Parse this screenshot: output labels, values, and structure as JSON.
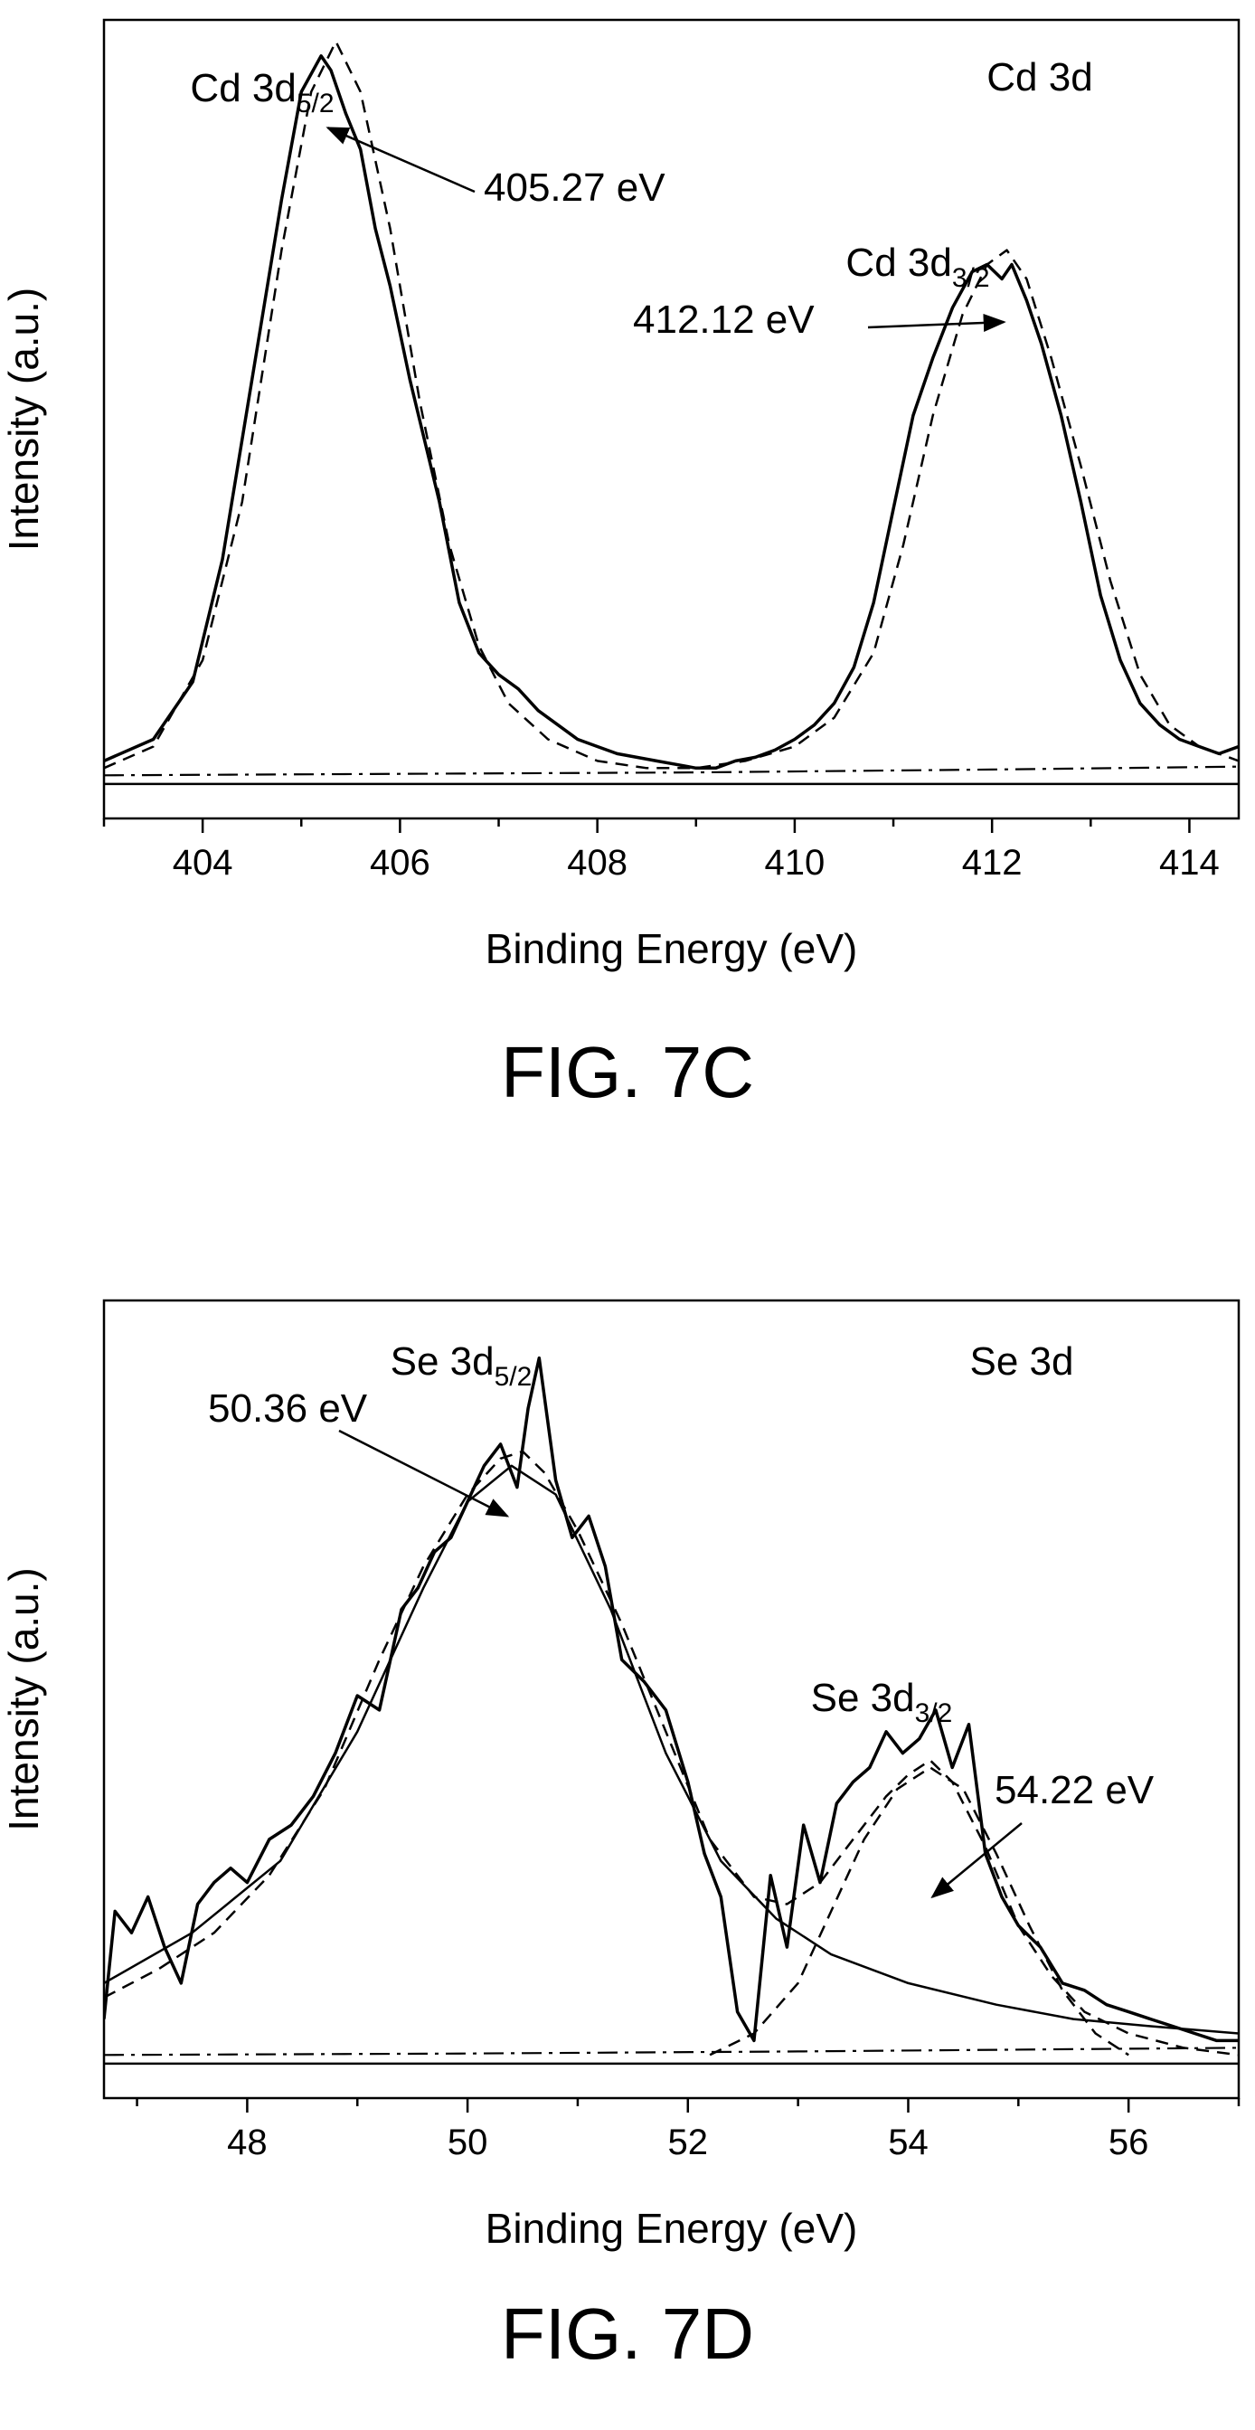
{
  "figures": [
    {
      "caption": "FIG. 7C"
    },
    {
      "caption": "FIG. 7D"
    }
  ],
  "chart_data": [
    {
      "type": "line",
      "panel_label": "Cd 3d",
      "xlabel": "Binding Energy (eV)",
      "ylabel": "Intensity (a.u.)",
      "xlim": [
        403.0,
        414.5
      ],
      "ylim": [
        -0.06,
        1.05
      ],
      "xticks": [
        404,
        406,
        408,
        410,
        412,
        414
      ],
      "yticks_shown": false,
      "grid": false,
      "series": [
        {
          "style": "solid",
          "x": [
            403.0,
            403.5,
            403.9,
            404.2,
            404.5,
            404.8,
            405.0,
            405.2,
            405.3,
            405.45,
            405.6,
            405.75,
            405.9,
            406.1,
            406.4,
            406.6,
            406.8,
            407.0,
            407.2,
            407.4,
            407.6,
            407.8,
            408.0,
            408.2,
            408.4,
            408.6,
            408.8,
            409.0,
            409.2,
            409.4,
            409.6,
            409.8,
            410.0,
            410.2,
            410.4,
            410.6,
            410.8,
            411.0,
            411.2,
            411.4,
            411.6,
            411.8,
            411.95,
            412.1,
            412.2,
            412.35,
            412.5,
            412.7,
            412.9,
            413.1,
            413.3,
            413.5,
            413.7,
            413.9,
            414.1,
            414.3,
            414.5
          ],
          "y": [
            0.02,
            0.05,
            0.13,
            0.3,
            0.55,
            0.8,
            0.95,
            1.0,
            0.98,
            0.92,
            0.87,
            0.76,
            0.68,
            0.55,
            0.38,
            0.24,
            0.17,
            0.14,
            0.12,
            0.09,
            0.07,
            0.05,
            0.04,
            0.03,
            0.025,
            0.02,
            0.015,
            0.01,
            0.01,
            0.02,
            0.025,
            0.035,
            0.05,
            0.07,
            0.1,
            0.15,
            0.24,
            0.37,
            0.5,
            0.58,
            0.65,
            0.7,
            0.71,
            0.69,
            0.71,
            0.66,
            0.6,
            0.5,
            0.38,
            0.25,
            0.16,
            0.1,
            0.07,
            0.05,
            0.04,
            0.03,
            0.04
          ]
        },
        {
          "style": "dashed",
          "x": [
            403.0,
            403.5,
            404.0,
            404.4,
            404.8,
            405.1,
            405.35,
            405.6,
            405.9,
            406.2,
            406.5,
            406.8,
            407.1,
            407.5,
            408.0,
            408.5,
            409.0,
            409.5,
            410.0,
            410.4,
            410.8,
            411.1,
            411.4,
            411.7,
            411.95,
            412.15,
            412.35,
            412.6,
            412.9,
            413.2,
            413.5,
            413.8,
            414.1,
            414.5
          ],
          "y": [
            0.01,
            0.04,
            0.16,
            0.38,
            0.73,
            0.95,
            1.02,
            0.95,
            0.76,
            0.52,
            0.32,
            0.18,
            0.1,
            0.05,
            0.02,
            0.01,
            0.01,
            0.02,
            0.04,
            0.08,
            0.17,
            0.32,
            0.5,
            0.64,
            0.71,
            0.73,
            0.69,
            0.58,
            0.43,
            0.27,
            0.14,
            0.07,
            0.04,
            0.02
          ]
        },
        {
          "style": "dashdot",
          "x": [
            403.0,
            406.0,
            409.0,
            412.0,
            414.5
          ],
          "y": [
            0.0,
            0.002,
            0.004,
            0.008,
            0.012
          ]
        }
      ],
      "annotations": [
        {
          "label_main": "Cd 3d",
          "label_sub": "5/2"
        },
        {
          "label_main": "Cd 3d",
          "label_sub": "3/2"
        },
        {
          "text": "405.27 eV",
          "arrow_x": 405.27,
          "arrow_y": 0.9
        },
        {
          "text": "412.12 eV",
          "arrow_x": 412.12,
          "arrow_y": 0.63
        }
      ]
    },
    {
      "type": "line",
      "panel_label": "Se 3d",
      "xlabel": "Binding Energy (eV)",
      "ylabel": "Intensity (a.u.)",
      "xlim": [
        46.7,
        57.0
      ],
      "ylim": [
        -0.06,
        1.05
      ],
      "xticks": [
        48,
        50,
        52,
        54,
        56
      ],
      "yticks_shown": false,
      "grid": false,
      "series": [
        {
          "style": "solid",
          "x": [
            46.7,
            46.8,
            46.95,
            47.1,
            47.25,
            47.4,
            47.55,
            47.7,
            47.85,
            48.0,
            48.2,
            48.4,
            48.6,
            48.8,
            49.0,
            49.2,
            49.4,
            49.55,
            49.7,
            49.85,
            50.0,
            50.15,
            50.3,
            50.45,
            50.55,
            50.65,
            50.8,
            50.95,
            51.1,
            51.25,
            51.4,
            51.6,
            51.8,
            52.0,
            52.15,
            52.3,
            52.45,
            52.6,
            52.75,
            52.9,
            53.05,
            53.2,
            53.35,
            53.5,
            53.65,
            53.8,
            53.95,
            54.1,
            54.25,
            54.4,
            54.55,
            54.7,
            54.85,
            55.0,
            55.2,
            55.4,
            55.6,
            55.8,
            56.0,
            56.2,
            56.4,
            56.6,
            56.8,
            57.0
          ],
          "y": [
            0.05,
            0.2,
            0.17,
            0.22,
            0.15,
            0.1,
            0.21,
            0.24,
            0.26,
            0.24,
            0.3,
            0.32,
            0.36,
            0.42,
            0.5,
            0.48,
            0.62,
            0.65,
            0.7,
            0.72,
            0.77,
            0.82,
            0.85,
            0.79,
            0.9,
            0.97,
            0.8,
            0.72,
            0.75,
            0.68,
            0.55,
            0.52,
            0.48,
            0.38,
            0.28,
            0.22,
            0.06,
            0.02,
            0.25,
            0.15,
            0.32,
            0.24,
            0.35,
            0.38,
            0.4,
            0.45,
            0.42,
            0.44,
            0.48,
            0.4,
            0.46,
            0.28,
            0.22,
            0.18,
            0.15,
            0.1,
            0.09,
            0.07,
            0.06,
            0.05,
            0.04,
            0.03,
            0.02,
            0.02
          ]
        },
        {
          "style": "dashed",
          "x": [
            46.7,
            47.2,
            47.7,
            48.2,
            48.7,
            49.2,
            49.6,
            50.0,
            50.3,
            50.5,
            50.7,
            51.0,
            51.4,
            51.8,
            52.2,
            52.6,
            52.9,
            53.2,
            53.5,
            53.8,
            54.0,
            54.2,
            54.4,
            54.7,
            55.0,
            55.3,
            55.6,
            56.0,
            56.5,
            57.0
          ],
          "y": [
            0.08,
            0.12,
            0.17,
            0.25,
            0.37,
            0.55,
            0.68,
            0.78,
            0.83,
            0.84,
            0.81,
            0.73,
            0.6,
            0.45,
            0.3,
            0.22,
            0.21,
            0.24,
            0.3,
            0.36,
            0.39,
            0.41,
            0.38,
            0.29,
            0.18,
            0.11,
            0.06,
            0.03,
            0.01,
            0.0
          ]
        },
        {
          "style": "solid_thin",
          "x": [
            46.7,
            47.5,
            48.3,
            49.0,
            49.6,
            50.0,
            50.4,
            50.8,
            51.3,
            51.8,
            52.3,
            52.8,
            53.3,
            54.0,
            54.8,
            55.5,
            56.2,
            57.0
          ],
          "y": [
            0.1,
            0.17,
            0.27,
            0.45,
            0.65,
            0.77,
            0.82,
            0.78,
            0.62,
            0.42,
            0.27,
            0.19,
            0.14,
            0.1,
            0.07,
            0.05,
            0.04,
            0.03
          ]
        },
        {
          "style": "dashed_thin",
          "x": [
            52.2,
            52.6,
            53.0,
            53.3,
            53.6,
            53.9,
            54.2,
            54.5,
            54.8,
            55.1,
            55.4,
            55.7,
            56.0
          ],
          "y": [
            0.0,
            0.03,
            0.1,
            0.2,
            0.3,
            0.37,
            0.4,
            0.37,
            0.28,
            0.18,
            0.09,
            0.03,
            0.0
          ]
        },
        {
          "style": "dashdot",
          "x": [
            46.7,
            50.0,
            53.0,
            57.0
          ],
          "y": [
            0.0,
            0.002,
            0.005,
            0.01
          ]
        }
      ],
      "annotations": [
        {
          "label_main": "Se 3d",
          "label_sub": "5/2"
        },
        {
          "label_main": "Se 3d",
          "label_sub": "3/2"
        },
        {
          "text": "50.36 eV",
          "arrow_x": 50.36,
          "arrow_y": 0.75
        },
        {
          "text": "54.22 eV",
          "arrow_x": 54.22,
          "arrow_y": 0.22
        }
      ]
    }
  ]
}
